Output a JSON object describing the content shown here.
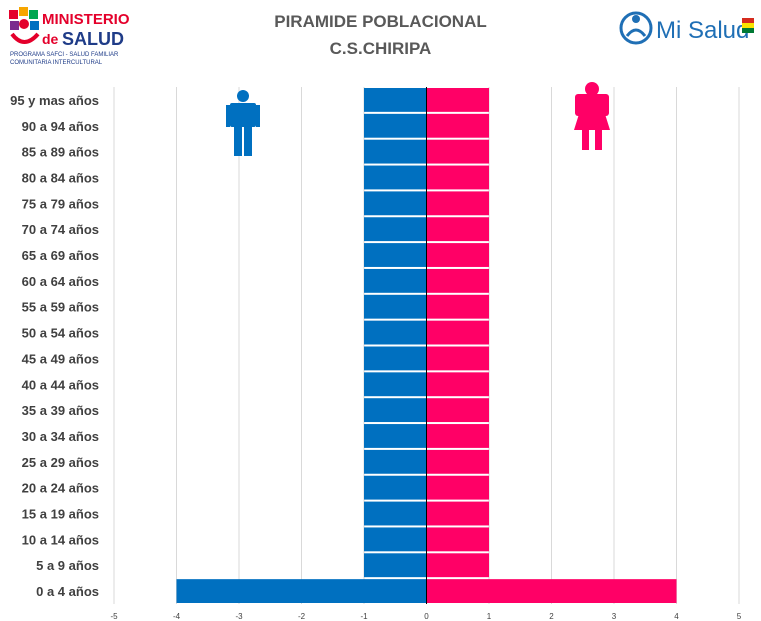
{
  "header": {
    "title": "PIRAMIDE POBLACIONAL",
    "subtitle": "C.S.CHIRIPA"
  },
  "logos": {
    "left": {
      "line1": "MINISTERIO",
      "line2_prefix": "de",
      "line2_main": "SALUD",
      "line3": "PROGRAMA SAFCI - SALUD FAMILIAR",
      "line4": "COMUNITARIA INTERCULTURAL"
    },
    "right": {
      "text": "Mi Salud"
    }
  },
  "colors": {
    "male": "#0070C0",
    "female": "#FF0066",
    "grid": "#D9D9D9",
    "text": "#404040",
    "title": "#595959"
  },
  "icons": {
    "male": "male-figure-icon",
    "female": "female-figure-icon"
  },
  "chart_data": {
    "type": "bar",
    "orientation": "horizontal",
    "title": "PIRAMIDE POBLACIONAL",
    "subtitle": "C.S.CHIRIPA",
    "categories": [
      "95 y mas años",
      "90 a 94 años",
      "85 a 89 años",
      "80 a 84 años",
      "75 a 79 años",
      "70 a 74 años",
      "65 a 69 años",
      "60 a 64 años",
      "55 a 59 años",
      "50 a 54 años",
      "45 a 49 años",
      "40 a 44 años",
      "35 a 39 años",
      "30 a 34 años",
      "25 a 29 años",
      "20 a 24 años",
      "15 a 19 años",
      "10 a 14 años",
      "5 a 9 años",
      "0 a 4 años"
    ],
    "series": [
      {
        "values": [
          -1,
          -1,
          -1,
          -1,
          -1,
          -1,
          -1,
          -1,
          -1,
          -1,
          -1,
          -1,
          -1,
          -1,
          -1,
          -1,
          -1,
          -1,
          -1,
          -4
        ],
        "color": "#0070C0"
      },
      {
        "values": [
          1,
          1,
          1,
          1,
          1,
          1,
          1,
          1,
          1,
          1,
          1,
          1,
          1,
          1,
          1,
          1,
          1,
          1,
          1,
          4
        ],
        "color": "#FF0066"
      }
    ],
    "xlim": [
      -5,
      5
    ],
    "xticks": [
      -5,
      -4,
      -3,
      -2,
      -1,
      0,
      1,
      2,
      3,
      4,
      5
    ],
    "grid": true
  }
}
